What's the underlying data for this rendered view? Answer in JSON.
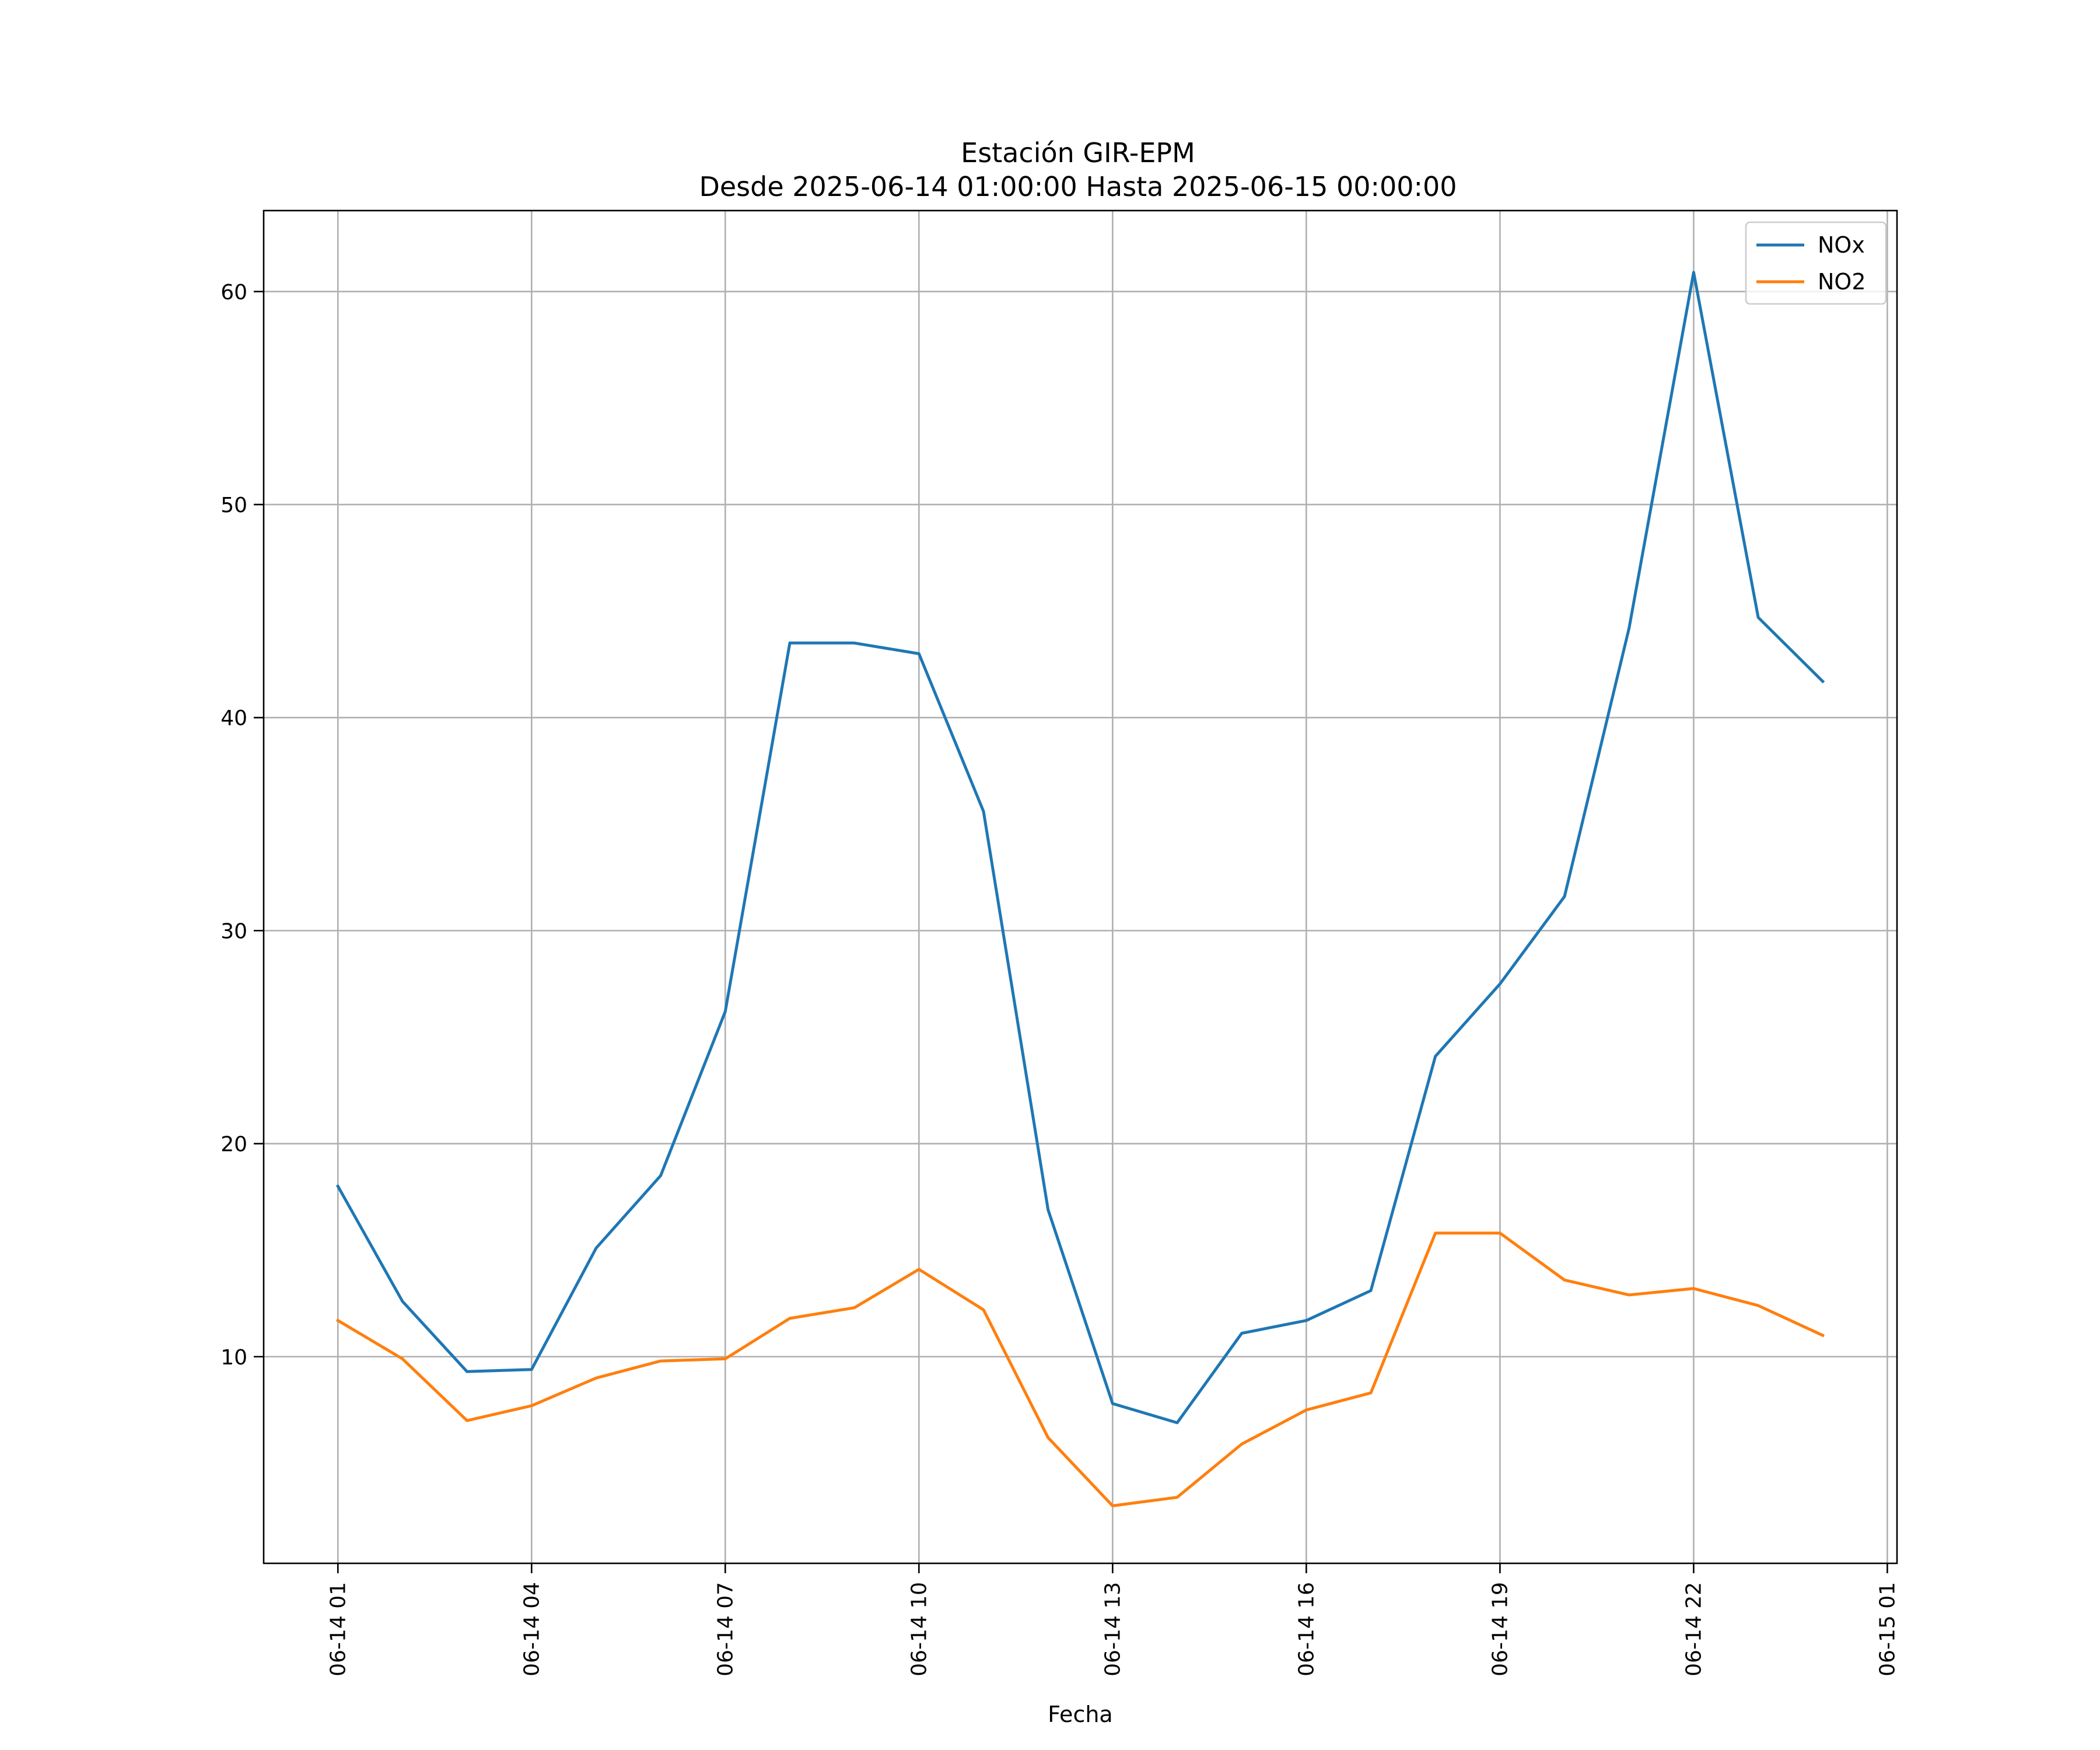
{
  "chart_data": {
    "type": "line",
    "title": "Estación GIR-EPM",
    "subtitle": "Desde 2025-06-14 01:00:00 Hasta 2025-06-15 00:00:00",
    "xlabel": "Fecha",
    "ylabel": "",
    "grid": true,
    "legend_position": "top-right",
    "x_hours": [
      1,
      2,
      3,
      4,
      5,
      6,
      7,
      8,
      9,
      10,
      11,
      12,
      13,
      14,
      15,
      16,
      17,
      18,
      19,
      20,
      21,
      22,
      23,
      24
    ],
    "x_range_hours": [
      -0.15,
      25.15
    ],
    "ylim": [
      0.3,
      63.8
    ],
    "x_ticks": [
      {
        "hour": 1,
        "label": "06-14 01"
      },
      {
        "hour": 4,
        "label": "06-14 04"
      },
      {
        "hour": 7,
        "label": "06-14 07"
      },
      {
        "hour": 10,
        "label": "06-14 10"
      },
      {
        "hour": 13,
        "label": "06-14 13"
      },
      {
        "hour": 16,
        "label": "06-14 16"
      },
      {
        "hour": 19,
        "label": "06-14 19"
      },
      {
        "hour": 22,
        "label": "06-14 22"
      },
      {
        "hour": 25,
        "label": "06-15 01"
      }
    ],
    "y_ticks": [
      {
        "value": 10,
        "label": "10"
      },
      {
        "value": 20,
        "label": "20"
      },
      {
        "value": 30,
        "label": "30"
      },
      {
        "value": 40,
        "label": "40"
      },
      {
        "value": 50,
        "label": "50"
      },
      {
        "value": 60,
        "label": "60"
      }
    ],
    "series": [
      {
        "name": "NOx",
        "color": "#1f77b4",
        "values": [
          18.0,
          12.6,
          9.3,
          9.4,
          15.1,
          18.5,
          26.2,
          43.5,
          43.5,
          43.0,
          35.6,
          16.9,
          7.8,
          6.9,
          11.1,
          11.7,
          13.1,
          24.1,
          27.5,
          31.6,
          44.2,
          60.9,
          44.7,
          41.7
        ]
      },
      {
        "name": "NO2",
        "color": "#ff7f0e",
        "values": [
          11.7,
          9.9,
          7.0,
          7.7,
          9.0,
          9.8,
          9.9,
          11.8,
          12.3,
          14.1,
          12.2,
          6.2,
          3.0,
          3.4,
          5.9,
          7.5,
          8.3,
          15.8,
          15.8,
          13.6,
          12.9,
          13.2,
          12.4,
          11.0
        ]
      }
    ]
  }
}
